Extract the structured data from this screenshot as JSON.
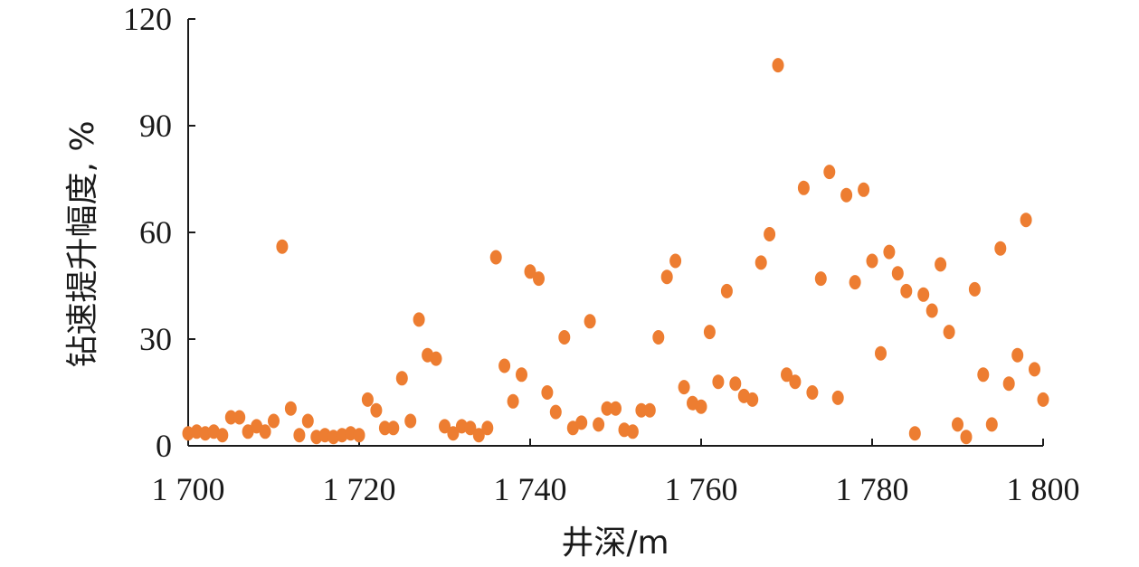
{
  "chart_data": {
    "type": "scatter",
    "title": "",
    "xlabel": "井深/m",
    "ylabel": "钻速提升幅度, %",
    "xlim": [
      1700,
      1800
    ],
    "ylim": [
      0,
      120
    ],
    "x_ticks": [
      1700,
      1720,
      1740,
      1760,
      1780,
      1800
    ],
    "x_tick_labels": [
      "1 700",
      "1 720",
      "1 740",
      "1 760",
      "1 780",
      "1 800"
    ],
    "y_ticks": [
      0,
      30,
      60,
      90,
      120
    ],
    "y_tick_labels": [
      "0",
      "30",
      "60",
      "90",
      "120"
    ],
    "grid": false,
    "legend": "none",
    "marker_color": "#ED7D31",
    "series": [
      {
        "points": [
          [
            1700,
            3.5
          ],
          [
            1701,
            4
          ],
          [
            1702,
            3.5
          ],
          [
            1703,
            4
          ],
          [
            1704,
            3
          ],
          [
            1705,
            8
          ],
          [
            1706,
            8
          ],
          [
            1707,
            4
          ],
          [
            1708,
            5.5
          ],
          [
            1709,
            4
          ],
          [
            1710,
            7
          ],
          [
            1711,
            56
          ],
          [
            1712,
            10.5
          ],
          [
            1713,
            3
          ],
          [
            1714,
            7
          ],
          [
            1715,
            2.5
          ],
          [
            1716,
            3
          ],
          [
            1717,
            2.5
          ],
          [
            1718,
            3
          ],
          [
            1719,
            3.5
          ],
          [
            1720,
            3
          ],
          [
            1721,
            13
          ],
          [
            1722,
            10
          ],
          [
            1723,
            5
          ],
          [
            1724,
            5
          ],
          [
            1725,
            19
          ],
          [
            1726,
            7
          ],
          [
            1727,
            35.5
          ],
          [
            1728,
            25.5
          ],
          [
            1729,
            24.5
          ],
          [
            1730,
            5.5
          ],
          [
            1731,
            3.5
          ],
          [
            1732,
            5.5
          ],
          [
            1733,
            5
          ],
          [
            1734,
            3
          ],
          [
            1735,
            5
          ],
          [
            1736,
            53
          ],
          [
            1737,
            22.5
          ],
          [
            1738,
            12.5
          ],
          [
            1739,
            20
          ],
          [
            1740,
            49
          ],
          [
            1741,
            47
          ],
          [
            1742,
            15
          ],
          [
            1743,
            9.5
          ],
          [
            1744,
            30.5
          ],
          [
            1745,
            5
          ],
          [
            1746,
            6.5
          ],
          [
            1747,
            35
          ],
          [
            1748,
            6
          ],
          [
            1749,
            10.5
          ],
          [
            1750,
            10.5
          ],
          [
            1751,
            4.5
          ],
          [
            1752,
            4
          ],
          [
            1753,
            10
          ],
          [
            1754,
            10
          ],
          [
            1755,
            30.5
          ],
          [
            1756,
            47.5
          ],
          [
            1757,
            52
          ],
          [
            1758,
            16.5
          ],
          [
            1759,
            12
          ],
          [
            1760,
            11
          ],
          [
            1761,
            32
          ],
          [
            1762,
            18
          ],
          [
            1763,
            43.5
          ],
          [
            1764,
            17.5
          ],
          [
            1765,
            14
          ],
          [
            1766,
            13
          ],
          [
            1767,
            51.5
          ],
          [
            1768,
            59.5
          ],
          [
            1769,
            107
          ],
          [
            1770,
            20
          ],
          [
            1771,
            18
          ],
          [
            1772,
            72.5
          ],
          [
            1773,
            15
          ],
          [
            1774,
            47
          ],
          [
            1775,
            77
          ],
          [
            1776,
            13.5
          ],
          [
            1777,
            70.5
          ],
          [
            1778,
            46
          ],
          [
            1779,
            72
          ],
          [
            1780,
            52
          ],
          [
            1781,
            26
          ],
          [
            1782,
            54.5
          ],
          [
            1783,
            48.5
          ],
          [
            1784,
            43.5
          ],
          [
            1785,
            3.5
          ],
          [
            1786,
            42.5
          ],
          [
            1787,
            38
          ],
          [
            1788,
            51
          ],
          [
            1789,
            32
          ],
          [
            1790,
            6
          ],
          [
            1791,
            2.5
          ],
          [
            1792,
            44
          ],
          [
            1793,
            20
          ],
          [
            1794,
            6
          ],
          [
            1795,
            55.5
          ],
          [
            1796,
            17.5
          ],
          [
            1797,
            25.5
          ],
          [
            1798,
            63.5
          ],
          [
            1799,
            21.5
          ],
          [
            1800,
            13
          ]
        ]
      }
    ]
  }
}
